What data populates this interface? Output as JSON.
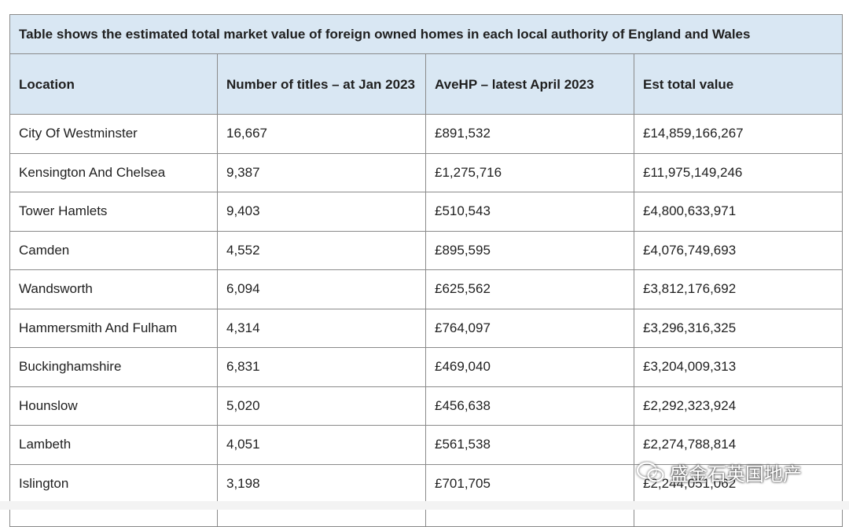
{
  "table": {
    "caption": "Table shows the estimated total market value of foreign owned homes in each local authority of England and Wales",
    "headers": [
      "Location",
      "Number of titles – at Jan 2023",
      "AveHP – latest April 2023",
      "Est total value"
    ],
    "rows": [
      [
        "City Of Westminster",
        "16,667",
        "£891,532",
        "£14,859,166,267"
      ],
      [
        "Kensington And Chelsea",
        "9,387",
        "£1,275,716",
        "£11,975,149,246"
      ],
      [
        "Tower Hamlets",
        "9,403",
        "£510,543",
        "£4,800,633,971"
      ],
      [
        "Camden",
        "4,552",
        "£895,595",
        "£4,076,749,693"
      ],
      [
        "Wandsworth",
        "6,094",
        "£625,562",
        "£3,812,176,692"
      ],
      [
        "Hammersmith And Fulham",
        "4,314",
        "£764,097",
        "£3,296,316,325"
      ],
      [
        "Buckinghamshire",
        "6,831",
        "£469,040",
        "£3,204,009,313"
      ],
      [
        "Hounslow",
        "5,020",
        "£456,638",
        "£2,292,323,924"
      ],
      [
        "Lambeth",
        "4,051",
        "£561,538",
        "£2,274,788,814"
      ],
      [
        "Islington",
        "3,198",
        "£701,705",
        "£2,244,051,062"
      ]
    ]
  },
  "watermark": {
    "text": "盛金石英国地产",
    "icon": "wechat-icon"
  }
}
